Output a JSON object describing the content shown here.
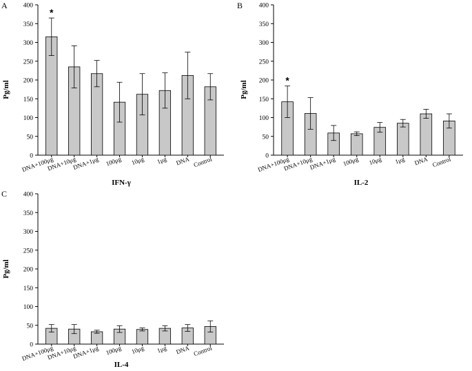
{
  "chart_data": [
    {
      "panel": "A",
      "type": "bar",
      "categories": [
        "DNA+100μg",
        "DNA+10μg",
        "DNA+1μg",
        "100μg",
        "10μg",
        "1μg",
        "DNA",
        "Control"
      ],
      "values": [
        315,
        235,
        217,
        141,
        162,
        172,
        212,
        182
      ],
      "errors": [
        50,
        56,
        35,
        53,
        55,
        47,
        62,
        35
      ],
      "significant": [
        true,
        false,
        false,
        false,
        false,
        false,
        false,
        false
      ],
      "significance_mark": "*",
      "xlabel": "IFN-γ",
      "ylabel": "Pg/ml",
      "ylim": [
        0,
        400
      ],
      "yticks": [
        "0",
        "50",
        "100",
        "150",
        "200",
        "250",
        "300",
        "350",
        "400"
      ],
      "grid": false
    },
    {
      "panel": "B",
      "type": "bar",
      "categories": [
        "DNA+100μg",
        "DNA+10μg",
        "DNA+1μg",
        "100μg",
        "10μg",
        "1μg",
        "DNA",
        "Control"
      ],
      "values": [
        142,
        111,
        59,
        57,
        74,
        85,
        110,
        91
      ],
      "errors": [
        42,
        42,
        20,
        5,
        13,
        10,
        12,
        19
      ],
      "significant": [
        true,
        false,
        false,
        false,
        false,
        false,
        false,
        false
      ],
      "significance_mark": "*",
      "xlabel": "IL-2",
      "ylabel": "Pg/ml",
      "ylim": [
        0,
        400
      ],
      "yticks": [
        "0",
        "50",
        "100",
        "150",
        "200",
        "250",
        "300",
        "350",
        "400"
      ],
      "grid": false
    },
    {
      "panel": "C",
      "type": "bar",
      "categories": [
        "DNA+100μg",
        "DNA+10μg",
        "DNA+1μg",
        "100μg",
        "10μg",
        "1μg",
        "DNA",
        "Control"
      ],
      "values": [
        42,
        40,
        33,
        40,
        39,
        42,
        43,
        47
      ],
      "errors": [
        10,
        12,
        4,
        9,
        4,
        7,
        9,
        15
      ],
      "significant": [
        false,
        false,
        false,
        false,
        false,
        false,
        false,
        false
      ],
      "significance_mark": "*",
      "xlabel": "IL-4",
      "ylabel": "Pg/ml",
      "ylim": [
        0,
        400
      ],
      "yticks": [
        "0",
        "50",
        "100",
        "150",
        "200",
        "250",
        "300",
        "350",
        "400"
      ],
      "grid": false
    }
  ]
}
